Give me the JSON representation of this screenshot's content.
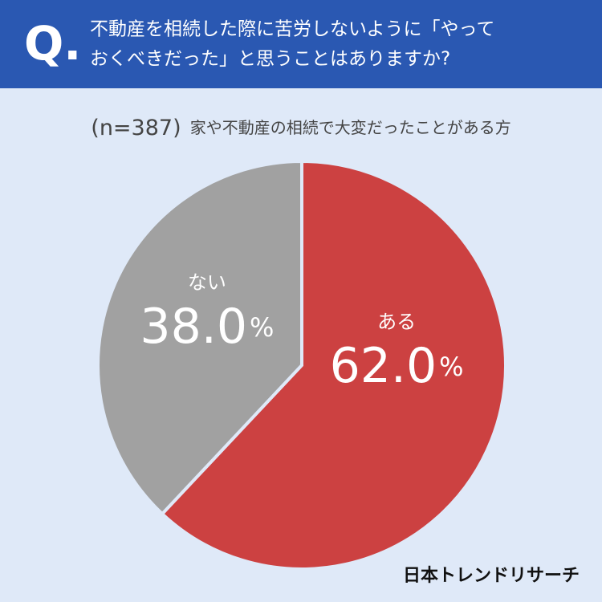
{
  "chart_data": {
    "type": "pie",
    "question_mark": "Q.",
    "title": [
      "不動産を相続した際に苦労しないように「やって",
      "おくべきだった」と思うことはありますか?"
    ],
    "sample": "(n=387)",
    "subtitle": "家や不動産の相続で大変だったことがある方",
    "categories": [
      "ある",
      "ない"
    ],
    "values": [
      62.0,
      38.0
    ],
    "value_labels": [
      "62.0%",
      "38.0%"
    ],
    "colors": [
      "#cc4141",
      "#a1a1a1"
    ],
    "source": "日本トレンドリサーチ"
  }
}
